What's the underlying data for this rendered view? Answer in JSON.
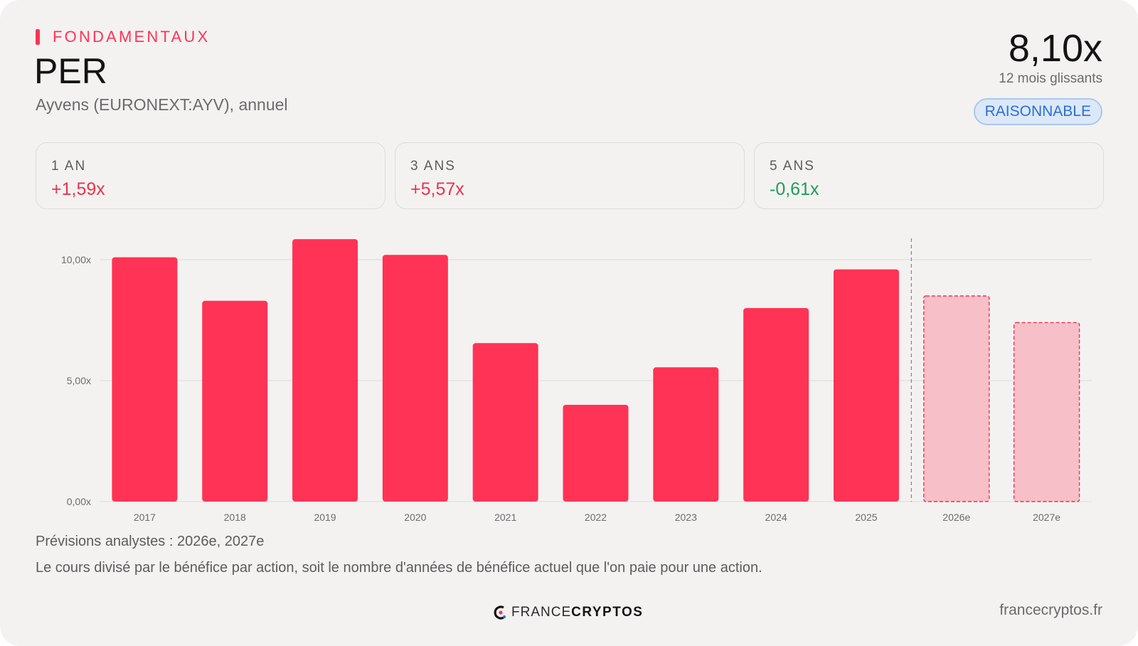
{
  "header": {
    "kicker": "FONDAMENTAUX",
    "title": "PER",
    "subtitle": "Ayvens (EURONEXT:AYV), annuel",
    "value": "8,10x",
    "period": "12 mois glissants",
    "badge": "RAISONNABLE"
  },
  "stats": [
    {
      "label": "1 AN",
      "value": "+1,59x",
      "trend": "up"
    },
    {
      "label": "3 ANS",
      "value": "+5,57x",
      "trend": "up"
    },
    {
      "label": "5 ANS",
      "value": "-0,61x",
      "trend": "down"
    }
  ],
  "colors": {
    "accent": "#ff3355",
    "forecast_fill": "#f7bfc8",
    "forecast_border": "#e8344e",
    "positive": "#e8344e",
    "negative": "#1e9e55",
    "badge": "#2a6fd6"
  },
  "chart_data": {
    "type": "bar",
    "categories": [
      "2017",
      "2018",
      "2019",
      "2020",
      "2021",
      "2022",
      "2023",
      "2024",
      "2025",
      "2026e",
      "2027e"
    ],
    "values": [
      10.1,
      8.3,
      10.85,
      10.2,
      6.55,
      4.0,
      5.55,
      8.0,
      9.6,
      8.5,
      7.4
    ],
    "forecast": [
      false,
      false,
      false,
      false,
      false,
      false,
      false,
      false,
      false,
      true,
      true
    ],
    "yticks": [
      0,
      5,
      10
    ],
    "ytick_labels": [
      "0,00x",
      "5,00x",
      "10,00x"
    ],
    "ylim": [
      0,
      11.5
    ],
    "grid": true
  },
  "footer": {
    "forecast_note": "Prévisions analystes : 2026e, 2027e",
    "description": "Le cours divisé par le bénéfice par action, soit le nombre d'années de bénéfice actuel que l'on paie pour une action.",
    "brand_light": "FRANCE",
    "brand_bold": "CRYPTOS",
    "site": "francecryptos.fr"
  }
}
